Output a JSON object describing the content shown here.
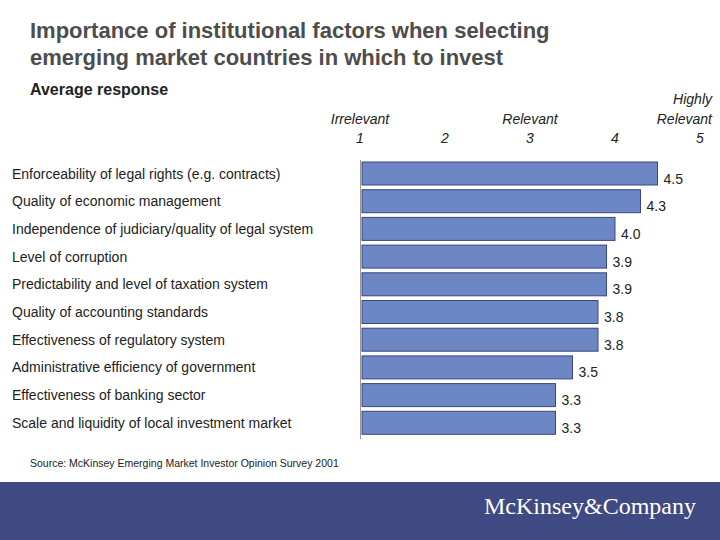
{
  "chart_data": {
    "type": "bar",
    "orientation": "horizontal",
    "title": "Importance of institutional factors when selecting emerging market countries in which to invest",
    "subtitle": "Average response",
    "categories": [
      "Enforceability of legal rights (e.g. contracts)",
      "Quality of economic management",
      "Independence of judiciary/quality of legal system",
      "Level of corruption",
      "Predictability and level of taxation system",
      "Quality of accounting standards",
      "Effectiveness of regulatory system",
      "Administrative efficiency of government",
      "Effectiveness of banking sector",
      "Scale and liquidity of local investment market"
    ],
    "values": [
      4.5,
      4.3,
      4.0,
      3.9,
      3.9,
      3.8,
      3.8,
      3.5,
      3.3,
      3.3
    ],
    "value_labels": [
      "4.5",
      "4.3",
      "4.0",
      "3.9",
      "3.9",
      "3.8",
      "3.8",
      "3.5",
      "3.3",
      "3.3"
    ],
    "data_labels": true,
    "color": "#6c87c3",
    "xlim": [
      1,
      5
    ],
    "xticks": [
      1,
      2,
      3,
      4,
      5
    ],
    "grid": false,
    "annotations": [
      {
        "x": 1,
        "text": "Irrelevant"
      },
      {
        "x": 3,
        "text": "Relevant"
      },
      {
        "x": 5,
        "text": "Highly Relevant"
      }
    ],
    "source": "Source: McKinsey Emerging Market Investor Opinion Survey 2001"
  },
  "footer": {
    "logo": "McKinsey&Company"
  }
}
